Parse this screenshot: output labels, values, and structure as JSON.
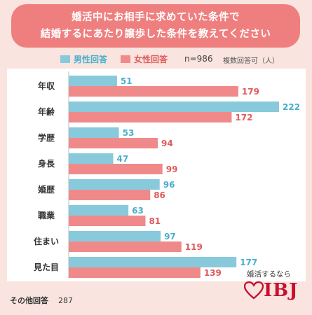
{
  "title": {
    "line1": "婚活中にお相手に求めていた条件で",
    "line2": "結婚するにあたり譲歩した条件を教えてください"
  },
  "legend": {
    "male": "男性回答",
    "female": "女性回答",
    "n": "n=986",
    "note": "複数回答可（人）"
  },
  "colors": {
    "male": "#89c9dc",
    "female": "#f08a8a",
    "title_bg": "#ef7f7f"
  },
  "chart_data": {
    "type": "bar",
    "orientation": "horizontal",
    "categories": [
      "年収",
      "年齢",
      "学歴",
      "身長",
      "婚歴",
      "職業",
      "住まい",
      "見た目"
    ],
    "series": [
      {
        "name": "男性回答",
        "values": [
          51,
          222,
          53,
          47,
          96,
          63,
          97,
          177
        ]
      },
      {
        "name": "女性回答",
        "values": [
          179,
          172,
          94,
          99,
          86,
          81,
          119,
          139
        ]
      }
    ],
    "xlim": [
      0,
      222
    ]
  },
  "other": {
    "label": "その他回答",
    "value": "287"
  },
  "logo": {
    "tagline": "婚活するなら",
    "brand": "IBJ"
  }
}
